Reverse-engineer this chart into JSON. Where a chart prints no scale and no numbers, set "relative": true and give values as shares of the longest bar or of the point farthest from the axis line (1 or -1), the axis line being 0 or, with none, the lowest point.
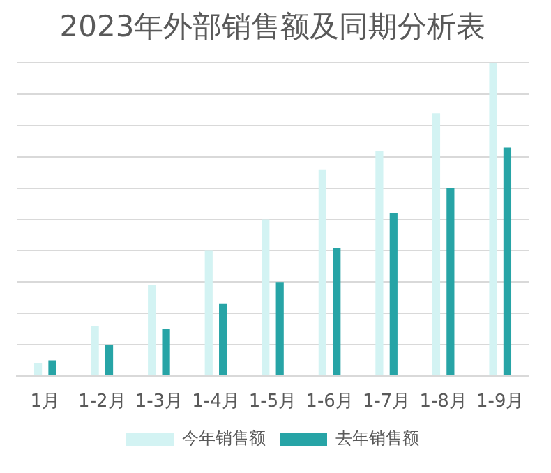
{
  "chart_data": {
    "type": "bar",
    "title": "2023年外部销售额及同期分析表",
    "relative": true,
    "grid": "y",
    "legend": "bottom",
    "categories": [
      "1月",
      "1-2月",
      "1-3月",
      "1-4月",
      "1-5月",
      "1-6月",
      "1-7月",
      "1-8月",
      "1-9月"
    ],
    "series": [
      {
        "name": "今年销售额",
        "color": "#d3f3f3",
        "values": [
          0.04,
          0.16,
          0.29,
          0.4,
          0.5,
          0.66,
          0.72,
          0.84,
          1
        ]
      },
      {
        "name": "去年销售额",
        "color": "#27a4a6",
        "values": [
          0.05,
          0.1,
          0.15,
          0.23,
          0.3,
          0.41,
          0.52,
          0.6,
          0.73
        ]
      }
    ]
  }
}
